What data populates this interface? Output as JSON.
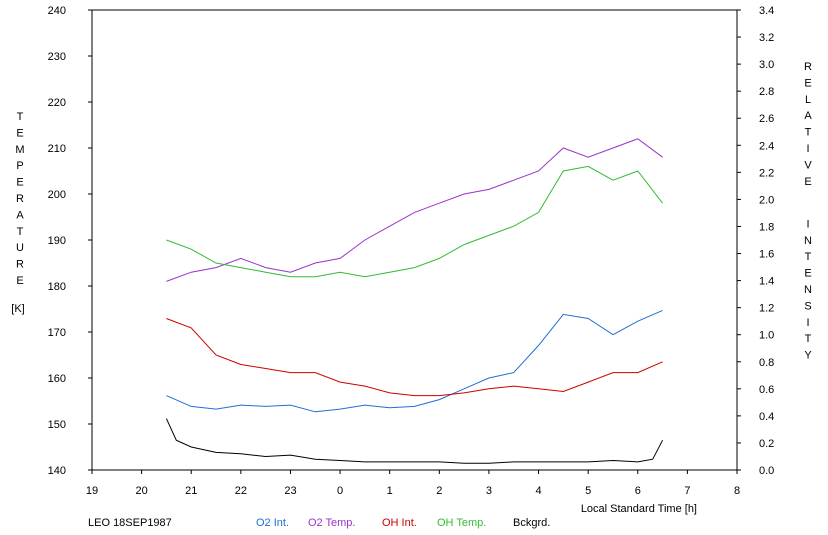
{
  "chart_data": {
    "type": "line",
    "left_axis": {
      "label": "TEMPERATURE",
      "unit": "[K]",
      "range": [
        140,
        240
      ],
      "ticks": [
        "140",
        "150",
        "160",
        "170",
        "180",
        "190",
        "200",
        "210",
        "220",
        "230",
        "240"
      ]
    },
    "right_axis": {
      "label": "RELATIVE INTENSITY",
      "range": [
        0.0,
        3.4
      ],
      "ticks": [
        "0.0",
        "0.2",
        "0.4",
        "0.6",
        "0.8",
        "1.0",
        "1.2",
        "1.4",
        "1.6",
        "1.8",
        "2.0",
        "2.2",
        "2.4",
        "2.6",
        "2.8",
        "3.0",
        "3.2",
        "3.4"
      ]
    },
    "x_axis": {
      "label": "Local Standard Time [h]",
      "ticks": [
        "19",
        "20",
        "21",
        "22",
        "23",
        "0",
        "1",
        "2",
        "3",
        "4",
        "5",
        "6",
        "7",
        "8"
      ]
    },
    "footer_label": "LEO 18SEP1987",
    "grid": false,
    "legend_placement": "bottom",
    "series": [
      {
        "name": "O2 Int.",
        "axis": "right",
        "color": "#1f6fd6",
        "x": [
          20.5,
          21.0,
          21.5,
          22.0,
          22.5,
          23.0,
          23.5,
          24.0,
          24.5,
          25.0,
          25.5,
          26.0,
          26.5,
          27.0,
          27.5,
          28.0,
          28.5,
          29.0,
          29.5,
          30.0,
          30.5
        ],
        "y": [
          0.55,
          0.47,
          0.45,
          0.48,
          0.47,
          0.48,
          0.43,
          0.45,
          0.48,
          0.46,
          0.47,
          0.52,
          0.6,
          0.68,
          0.72,
          0.92,
          1.15,
          1.12,
          1.0,
          1.1,
          1.18
        ]
      },
      {
        "name": "O2 Temp.",
        "axis": "left",
        "color": "#9933cc",
        "x": [
          20.5,
          21.0,
          21.5,
          22.0,
          22.5,
          23.0,
          23.5,
          24.0,
          24.5,
          25.0,
          25.5,
          26.0,
          26.5,
          27.0,
          27.5,
          28.0,
          28.5,
          29.0,
          29.5,
          30.0,
          30.5
        ],
        "y": [
          181,
          183,
          184,
          186,
          184,
          183,
          185,
          186,
          190,
          193,
          196,
          198,
          200,
          201,
          203,
          205,
          210,
          208,
          210,
          212,
          208
        ]
      },
      {
        "name": "OH Int.",
        "axis": "right",
        "color": "#cc0000",
        "x": [
          20.5,
          21.0,
          21.5,
          22.0,
          22.5,
          23.0,
          23.5,
          24.0,
          24.5,
          25.0,
          25.5,
          26.0,
          26.5,
          27.0,
          27.5,
          28.0,
          28.5,
          29.0,
          29.5,
          30.0,
          30.5
        ],
        "y": [
          1.12,
          1.05,
          0.85,
          0.78,
          0.75,
          0.72,
          0.72,
          0.65,
          0.62,
          0.57,
          0.55,
          0.55,
          0.57,
          0.6,
          0.62,
          0.6,
          0.58,
          0.65,
          0.72,
          0.72,
          0.8
        ]
      },
      {
        "name": "OH Temp.",
        "axis": "left",
        "color": "#33bb33",
        "x": [
          20.5,
          21.0,
          21.5,
          22.0,
          22.5,
          23.0,
          23.5,
          24.0,
          24.5,
          25.0,
          25.5,
          26.0,
          26.5,
          27.0,
          27.5,
          28.0,
          28.5,
          29.0,
          29.5,
          30.0,
          30.5
        ],
        "y": [
          190,
          188,
          185,
          184,
          183,
          182,
          182,
          183,
          182,
          183,
          184,
          186,
          189,
          191,
          193,
          196,
          205,
          206,
          203,
          205,
          198
        ]
      },
      {
        "name": "Bckgrd.",
        "axis": "right",
        "color": "#000000",
        "x": [
          20.5,
          20.7,
          21.0,
          21.5,
          22.0,
          22.5,
          23.0,
          23.5,
          24.0,
          24.5,
          25.0,
          25.5,
          26.0,
          26.5,
          27.0,
          27.5,
          28.0,
          28.5,
          29.0,
          29.5,
          30.0,
          30.3,
          30.5
        ],
        "y": [
          0.38,
          0.22,
          0.17,
          0.13,
          0.12,
          0.1,
          0.11,
          0.08,
          0.07,
          0.06,
          0.06,
          0.06,
          0.06,
          0.05,
          0.05,
          0.06,
          0.06,
          0.06,
          0.06,
          0.07,
          0.06,
          0.08,
          0.22
        ]
      }
    ]
  }
}
